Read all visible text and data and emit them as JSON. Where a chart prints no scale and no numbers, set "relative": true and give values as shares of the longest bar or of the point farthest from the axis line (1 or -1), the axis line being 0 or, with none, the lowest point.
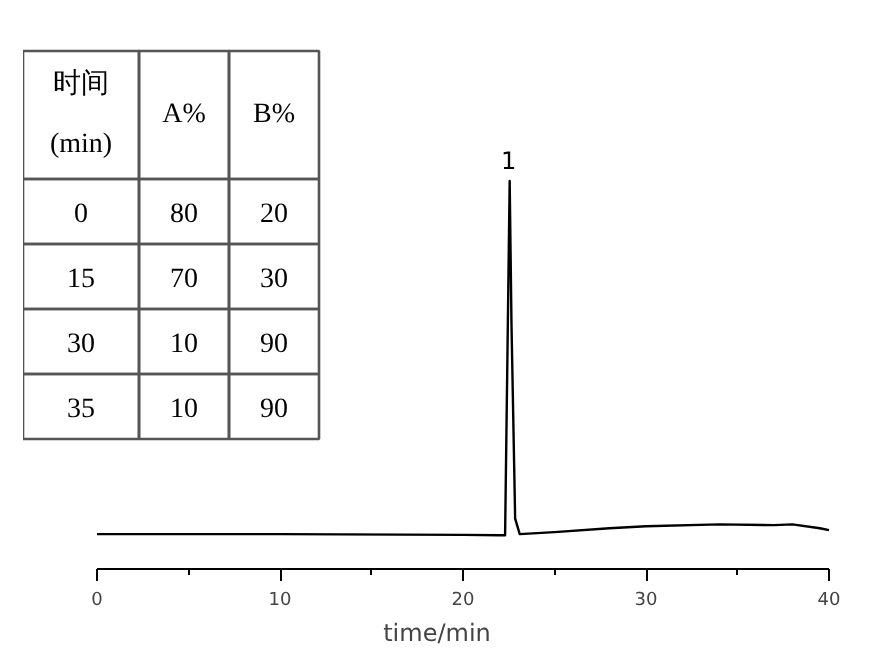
{
  "chart_data": {
    "type": "line",
    "relative": true,
    "xlabel": "time/min",
    "xlim": [
      0,
      40
    ],
    "xticks": [
      0,
      {
        "value": 5,
        "label": null
      },
      10,
      {
        "value": 15,
        "label": null
      },
      20,
      {
        "value": 25,
        "label": null
      },
      30,
      {
        "value": 35,
        "label": null
      },
      40
    ],
    "x": [
      0,
      3,
      10,
      20,
      22.0,
      22.3,
      22.45,
      22.55,
      22.65,
      22.85,
      23.1,
      25,
      28,
      30,
      34,
      37,
      38,
      39.5,
      40
    ],
    "series": [
      {
        "color": "#000000",
        "values": [
          0.09,
          0.09,
          0.09,
          0.088,
          0.087,
          0.087,
          0.63,
          1,
          0.63,
          0.13,
          0.09,
          0.095,
          0.105,
          0.11,
          0.115,
          0.113,
          0.115,
          0.105,
          0.1
        ]
      }
    ],
    "grid": false,
    "tick_labels": "x",
    "annotations": [
      {
        "text": "1",
        "x": 22.5,
        "y": 1
      },
      "时间\n(min)",
      "A%",
      "B%",
      "0",
      "80",
      "20",
      "15",
      "70",
      "30",
      "30",
      "10",
      "90",
      "35",
      "10",
      "90"
    ]
  }
}
